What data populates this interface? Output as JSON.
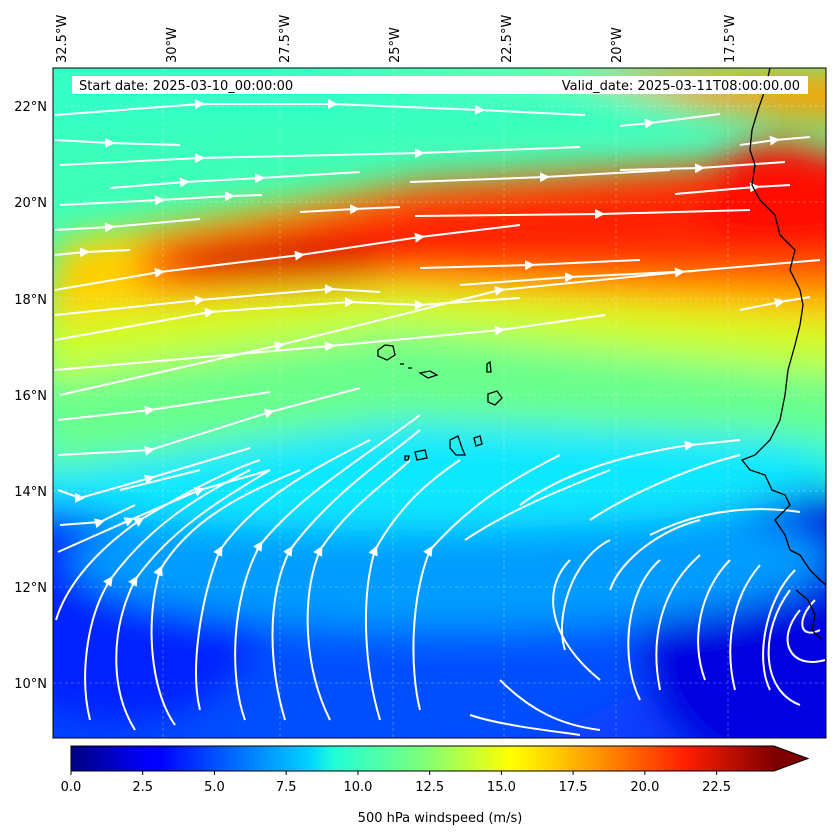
{
  "figure": {
    "start_date_text": "Start date: 2025-03-10_00:00:00",
    "valid_date_text": "Valid_date: 2025-03-11T08:00:00.00",
    "colorbar_label": "500 hPa windspeed (m/s)"
  },
  "map": {
    "longitude_labels": [
      "32.5°W",
      "30°W",
      "27.5°W",
      "25°W",
      "22.5°W",
      "20°W",
      "17.5°W"
    ],
    "latitude_labels": [
      "22°N",
      "20°N",
      "18°N",
      "16°N",
      "14°N",
      "12°N",
      "10°N"
    ],
    "extent": {
      "lon_min": -33.0,
      "lon_max": -15.6,
      "lat_min": 8.9,
      "lat_max": 22.8
    },
    "streamline_color": "#ffffff",
    "coastline_color": "#000000"
  },
  "colorbar": {
    "tick_labels": [
      "0.0",
      "2.5",
      "5.0",
      "7.5",
      "10.0",
      "12.5",
      "15.0",
      "17.5",
      "20.0",
      "22.5"
    ],
    "tick_values": [
      0,
      2.5,
      5,
      7.5,
      10,
      12.5,
      15,
      17.5,
      20,
      22.5
    ],
    "vmin": 0,
    "vmax": 24.5,
    "extend": "max",
    "colormap": "jet"
  }
}
